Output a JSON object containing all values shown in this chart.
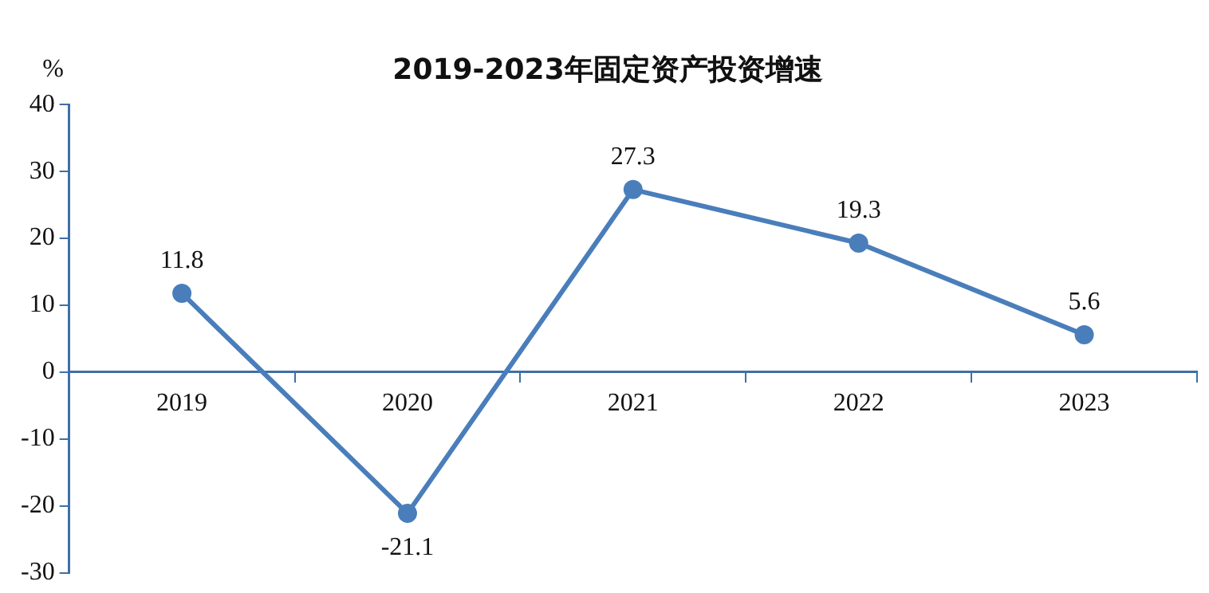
{
  "chart_data": {
    "type": "line",
    "title": "2019-2023年固定资产投资增速",
    "ylabel": "%",
    "categories": [
      "2019",
      "2020",
      "2021",
      "2022",
      "2023"
    ],
    "values": [
      11.8,
      -21.1,
      27.3,
      19.3,
      5.6
    ],
    "color": "#4a7ebb",
    "ylim": [
      -30,
      40
    ],
    "yticks": [
      -30,
      -20,
      -10,
      0,
      10,
      20,
      30,
      40
    ],
    "data_labels": true,
    "marker": "circle"
  }
}
